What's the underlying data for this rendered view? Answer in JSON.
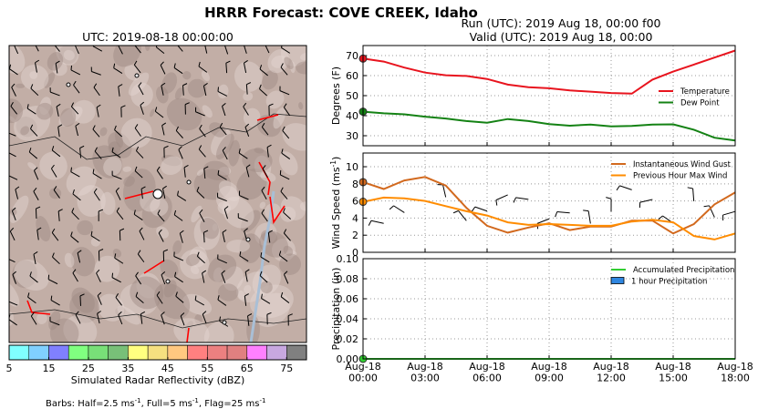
{
  "figure": {
    "title": "HRRR Forecast: COVE CREEK, Idaho",
    "run": "Run (UTC): 2019 Aug 18, 00:00 f00",
    "valid": "Valid (UTC): 2019 Aug 18, 00:00",
    "note": [
      "Barbs: Half=2.5 ms",
      "-1",
      ", Full=5 ms",
      "-1",
      ", Flag=25 ms",
      "-1"
    ]
  },
  "chart_data": [
    {
      "type": "colorbar",
      "title": "UTC: 2019-08-18 00:00:00",
      "label": "Simulated Radar Reflectivity (dBZ)",
      "bins": [
        5,
        10,
        15,
        20,
        25,
        30,
        35,
        40,
        45,
        50,
        55,
        60,
        65,
        70,
        75,
        80
      ],
      "colors": [
        "#80ffff",
        "#80d0ff",
        "#8080ff",
        "#80ff80",
        "#78e078",
        "#78c078",
        "#ffff80",
        "#f5e080",
        "#ffc880",
        "#ff8080",
        "#ec8080",
        "#e08080",
        "#ff80ff",
        "#c8a8e0",
        "#808080"
      ],
      "xlim": [
        5,
        80
      ],
      "xticks": [
        5,
        15,
        25,
        35,
        45,
        55,
        65,
        75
      ]
    },
    {
      "type": "line",
      "ylabel": [
        "Degrees (F)"
      ],
      "ylim": [
        25,
        75
      ],
      "yticks": [
        30,
        40,
        50,
        60,
        70
      ],
      "grid": true,
      "legend": "center right",
      "series": [
        {
          "name": "Temperature",
          "color": "#e8141e",
          "values": [
            68.5,
            67,
            64,
            61.5,
            60.2,
            59.8,
            58.3,
            55.5,
            54.2,
            53.7,
            52.6,
            52,
            51.3,
            51,
            58,
            62,
            65.5,
            69,
            72.5
          ]
        },
        {
          "name": "Dew Point",
          "color": "#148214",
          "values": [
            42,
            41.2,
            40.7,
            39.5,
            38.6,
            37.3,
            36.5,
            38.3,
            37.3,
            35.8,
            35,
            35.6,
            34.7,
            34.9,
            35.6,
            35.7,
            33,
            29,
            27.6
          ]
        }
      ]
    },
    {
      "type": "line",
      "ylabel": [
        "Wind Speed (ms",
        "-1",
        ")"
      ],
      "ylim": [
        0,
        11.6
      ],
      "yticks": [
        0,
        2,
        4,
        6,
        8,
        10
      ],
      "grid": true,
      "legend": "upper right",
      "series": [
        {
          "name": "Instantaneous Wind Gust",
          "color": "#d2691e",
          "values": [
            8.2,
            7.4,
            8.4,
            8.8,
            7.8,
            5.2,
            3.1,
            2.3,
            2.9,
            3.4,
            2.6,
            3.0,
            3.0,
            3.7,
            3.7,
            2.2,
            3.3,
            5.6,
            7.0
          ]
        },
        {
          "name": "Previous Hour Max Wind",
          "color": "#ff8c00",
          "values": [
            5.9,
            6.4,
            6.3,
            6.0,
            5.4,
            4.8,
            4.3,
            3.5,
            3.2,
            3.3,
            3.2,
            3.1,
            3.1,
            3.6,
            3.8,
            3.5,
            1.9,
            1.5,
            2.2
          ]
        }
      ]
    },
    {
      "type": "line",
      "ylabel": [
        "Precipitation (in)"
      ],
      "ylim": [
        0,
        0.1
      ],
      "yticks": [
        {
          "value": 0,
          "label": "0.00"
        },
        {
          "value": 0.02,
          "label": "0.02"
        },
        {
          "value": 0.04,
          "label": "0.04"
        },
        {
          "value": 0.06,
          "label": "0.06"
        },
        {
          "value": 0.08,
          "label": "0.08"
        },
        {
          "value": 0.1,
          "label": "0.10"
        }
      ],
      "grid": true,
      "legend": "upper right",
      "categories": [
        "Aug-18\n00:00",
        null,
        null,
        "Aug-18\n03:00",
        null,
        null,
        "Aug-18\n06:00",
        null,
        null,
        "Aug-18\n09:00",
        null,
        null,
        "Aug-18\n12:00",
        null,
        null,
        "Aug-18\n15:00",
        null,
        null,
        "Aug-18\n18:00"
      ],
      "series": [
        {
          "name": "Accumulated Precipitation",
          "color": "#32cd32",
          "kind": "line",
          "values": [
            0,
            0,
            0,
            0,
            0,
            0,
            0,
            0,
            0,
            0,
            0,
            0,
            0,
            0,
            0,
            0,
            0,
            0,
            0
          ]
        },
        {
          "name": "1 hour Precipitation",
          "color": "#2f86e0",
          "kind": "bar",
          "values": [
            0,
            0,
            0,
            0,
            0,
            0,
            0,
            0,
            0,
            0,
            0,
            0,
            0,
            0,
            0,
            0,
            0,
            0,
            0
          ]
        }
      ]
    }
  ]
}
